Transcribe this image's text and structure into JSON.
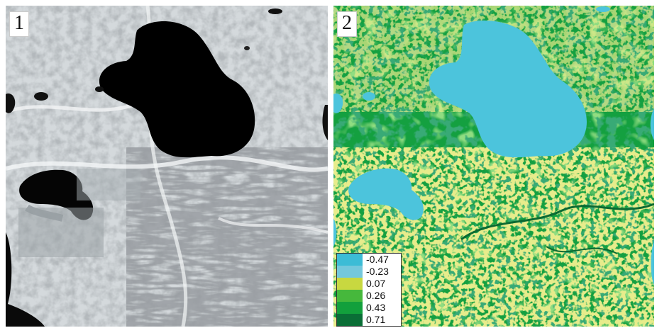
{
  "panels": [
    {
      "id": "1",
      "label": "1",
      "kind": "grayscale-satellite-image"
    },
    {
      "id": "2",
      "label": "2",
      "kind": "classified-index-map"
    }
  ],
  "legend": {
    "items": [
      {
        "label": "-0.47",
        "color": "#3cbcd6"
      },
      {
        "label": "-0.23",
        "color": "#74c8dc"
      },
      {
        "label": "0.07",
        "color": "#c8d840"
      },
      {
        "label": "0.26",
        "color": "#46b83c"
      },
      {
        "label": "0.43",
        "color": "#12a03c"
      },
      {
        "label": "0.71",
        "color": "#0a6e36"
      }
    ]
  },
  "colors": {
    "water": "#4cc4dc",
    "high_veg": "#14a040",
    "mid_veg": "#44b83a",
    "low_veg": "#c8d43c",
    "dark_veg": "#0b6a32",
    "gray_bg": "#c6ccd0",
    "gray_light": "#eef1f2",
    "gray_dark": "#7a8288"
  }
}
